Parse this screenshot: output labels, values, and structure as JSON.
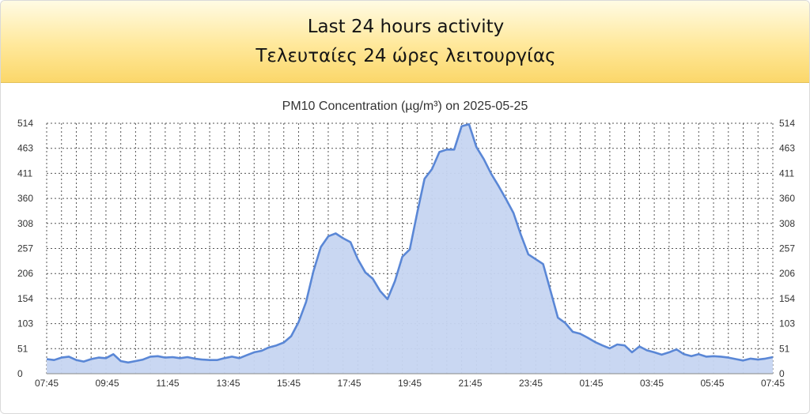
{
  "header": {
    "title_en": "Last 24 hours activity",
    "title_el": "Τελευταίες 24 ώρες λειτουργίας"
  },
  "colors": {
    "line": "#5a87d6",
    "fill": "#c6d5f1",
    "grid": "#555555",
    "text": "#333333"
  },
  "chart_data": {
    "type": "area",
    "title": "PM10 Concentration (µg/m³) on 2025-05-25",
    "xlabel": "",
    "ylabel": "",
    "ylim": [
      0,
      514
    ],
    "y_ticks": [
      "0",
      "51",
      "103",
      "154",
      "206",
      "257",
      "308",
      "360",
      "411",
      "463",
      "514"
    ],
    "x_ticks": [
      "07:45",
      "09:45",
      "11:45",
      "13:45",
      "15:45",
      "17:45",
      "19:45",
      "21:45",
      "23:45",
      "01:45",
      "03:45",
      "05:45",
      "07:45"
    ],
    "x_start": "07:45",
    "x_step_minutes": 15,
    "series": [
      {
        "values": [
          30,
          28,
          33,
          35,
          28,
          25,
          30,
          33,
          32,
          40,
          26,
          23,
          26,
          29,
          35,
          36,
          33,
          34,
          32,
          34,
          31,
          29,
          28,
          28,
          32,
          35,
          32,
          38,
          44,
          47,
          54,
          58,
          64,
          77,
          106,
          147,
          210,
          260,
          282,
          288,
          278,
          270,
          235,
          208,
          195,
          170,
          153,
          190,
          240,
          255,
          330,
          400,
          420,
          455,
          460,
          460,
          508,
          512,
          465,
          440,
          410,
          385,
          358,
          330,
          285,
          245,
          235,
          225,
          170,
          115,
          104,
          86,
          82,
          74,
          65,
          58,
          52,
          60,
          58,
          44,
          56,
          48,
          44,
          39,
          44,
          50,
          40,
          36,
          40,
          35,
          36,
          35,
          33,
          30,
          27,
          31,
          29,
          31,
          34
        ]
      }
    ]
  }
}
